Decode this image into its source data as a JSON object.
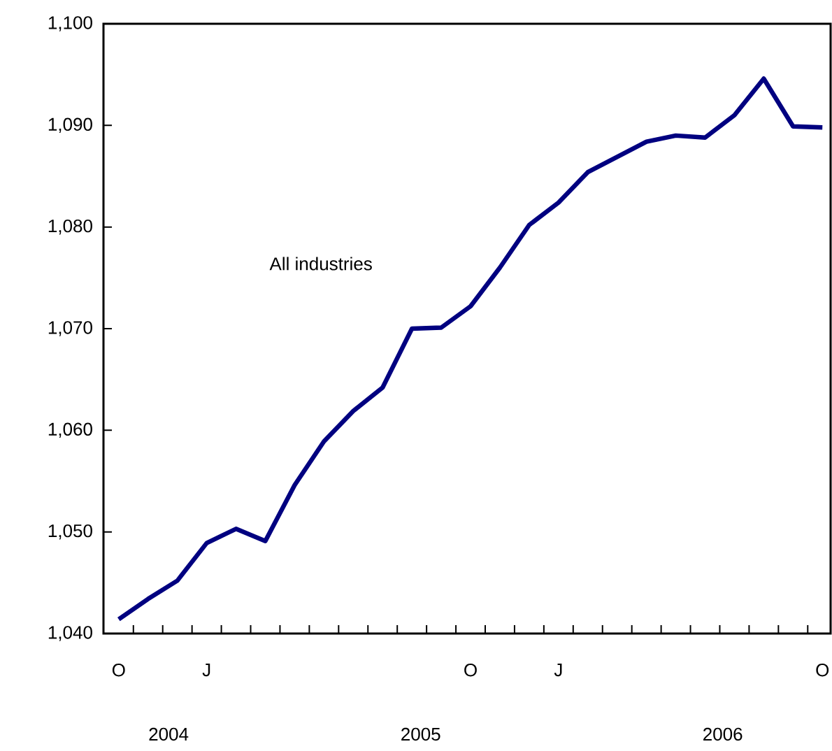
{
  "chart_data": {
    "type": "line",
    "categories": [
      "O",
      null,
      null,
      "J",
      null,
      null,
      null,
      null,
      null,
      null,
      null,
      null,
      "O",
      null,
      null,
      "J",
      null,
      null,
      null,
      null,
      null,
      null,
      null,
      null,
      "O"
    ],
    "series": [
      {
        "name": "All industries",
        "color": "#000080",
        "values": [
          1041.4,
          1043.4,
          1045.2,
          1048.9,
          1050.3,
          1049.1,
          1054.6,
          1058.9,
          1061.9,
          1064.2,
          1070.0,
          1070.1,
          1072.2,
          1076.0,
          1080.2,
          1082.4,
          1085.4,
          1086.9,
          1088.4,
          1089.0,
          1088.8,
          1091.0,
          1094.6,
          1089.9,
          1089.8
        ]
      }
    ],
    "ylim": [
      1040,
      1100
    ],
    "yticks": [
      {
        "value": 1040,
        "label": "1,040"
      },
      {
        "value": 1050,
        "label": "1,050"
      },
      {
        "value": 1060,
        "label": "1,060"
      },
      {
        "value": 1070,
        "label": "1,070"
      },
      {
        "value": 1080,
        "label": "1,080"
      },
      {
        "value": 1090,
        "label": "1,090"
      },
      {
        "value": 1100,
        "label": "1,100"
      }
    ],
    "annotations": [
      "2004",
      "2005",
      "2006"
    ],
    "marker": "none",
    "line_style": "solid"
  }
}
